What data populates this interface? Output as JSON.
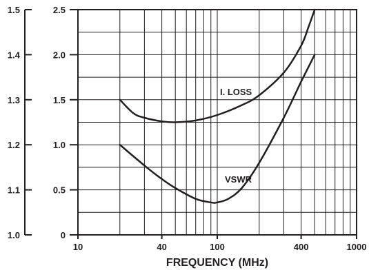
{
  "chart_data": {
    "type": "line",
    "x_scale": "log",
    "xlim": [
      10,
      1000
    ],
    "x_ticks": [
      10,
      40,
      100,
      400,
      1000
    ],
    "x_tick_labels": [
      "10",
      "40",
      "100",
      "400",
      "1000"
    ],
    "xlabel": "FREQUENCY (MHz)",
    "left_axis": {
      "ylim": [
        1.0,
        1.5
      ],
      "ticks": [
        1.0,
        1.1,
        1.2,
        1.3,
        1.4,
        1.5
      ],
      "tick_labels": [
        "1.0",
        "1.1",
        "1.2",
        "1.3",
        "1.4",
        "1.5"
      ]
    },
    "right_axis": {
      "ylim": [
        0,
        2.5
      ],
      "ticks": [
        0,
        0.5,
        1.0,
        1.5,
        2.0,
        2.5
      ],
      "tick_labels": [
        "0",
        "0.5",
        "1.0",
        "1.5",
        "2.0",
        "2.5"
      ]
    },
    "grid": true,
    "series": [
      {
        "name": "I. LOSS",
        "axis": "right",
        "x": [
          20,
          25,
          30,
          40,
          50,
          70,
          100,
          150,
          200,
          300,
          400,
          450,
          500
        ],
        "y": [
          1.5,
          1.35,
          1.3,
          1.26,
          1.25,
          1.27,
          1.33,
          1.44,
          1.55,
          1.8,
          2.1,
          2.3,
          2.5
        ]
      },
      {
        "name": "VSWR",
        "axis": "left",
        "x": [
          20,
          30,
          40,
          50,
          70,
          90,
          100,
          120,
          150,
          200,
          300,
          400,
          500
        ],
        "y": [
          1.2,
          1.154,
          1.124,
          1.104,
          1.08,
          1.072,
          1.072,
          1.08,
          1.104,
          1.16,
          1.26,
          1.34,
          1.4
        ]
      }
    ]
  }
}
